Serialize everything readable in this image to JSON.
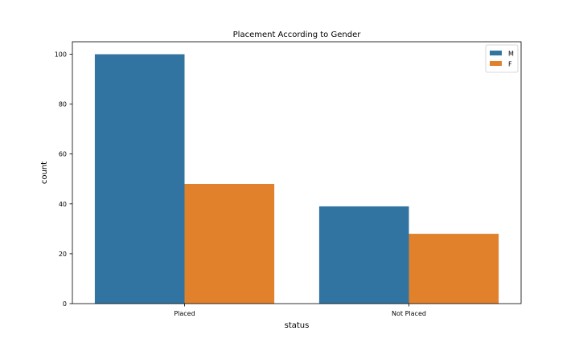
{
  "chart_data": {
    "type": "bar",
    "title": "Placement According to Gender",
    "xlabel": "status",
    "ylabel": "count",
    "categories": [
      "Placed",
      "Not Placed"
    ],
    "series": [
      {
        "name": "M",
        "values": [
          100,
          39
        ],
        "color": "#3274a1"
      },
      {
        "name": "F",
        "values": [
          48,
          28
        ],
        "color": "#e1812c"
      }
    ],
    "ylim": [
      0,
      105
    ],
    "yticks": [
      0,
      20,
      40,
      60,
      80,
      100
    ],
    "legend_position": "top-right",
    "grid": false
  }
}
